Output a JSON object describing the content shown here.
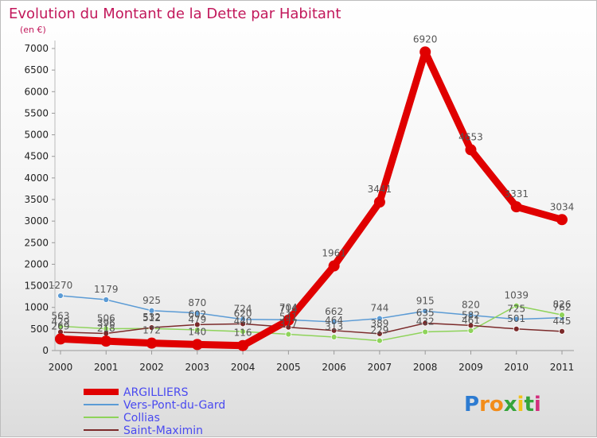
{
  "chart_data": {
    "type": "line",
    "title": "Evolution du Montant de la Dette par Habitant",
    "ylabel": "(en €)",
    "xlabel": "",
    "x": [
      "2000",
      "2001",
      "2002",
      "2003",
      "2004",
      "2005",
      "2006",
      "2007",
      "2008",
      "2009",
      "2010",
      "2011"
    ],
    "ylim": [
      0,
      7000
    ],
    "yticks": [
      "0",
      "500",
      "1000",
      "1500",
      "2000",
      "2500",
      "3000",
      "3500",
      "4000",
      "4500",
      "5000",
      "5500",
      "6000",
      "6500",
      "7000"
    ],
    "series": [
      {
        "name": "ARGILLIERS",
        "color": "#e00000",
        "values": [
          269,
          218,
          172,
          140,
          116,
          704,
          1961,
          3441,
          6920,
          4653,
          3331,
          3034
        ],
        "labels": [
          "269",
          "218",
          "172",
          "140",
          "116",
          "704",
          "1961",
          "3441",
          "6920",
          "4653",
          "3331",
          "3034"
        ]
      },
      {
        "name": "Vers-Pont-du-Gard",
        "color": "#5b9bd5",
        "values": [
          1270,
          1179,
          925,
          870,
          724,
          714,
          662,
          744,
          915,
          820,
          725,
          762
        ],
        "labels": [
          "1270",
          "1179",
          "925",
          "870",
          "724",
          "714",
          "662",
          "744",
          "915",
          "820",
          "725",
          "762"
        ]
      },
      {
        "name": "Collias",
        "color": "#8ed35a",
        "values": [
          563,
          506,
          512,
          479,
          440,
          377,
          313,
          229,
          432,
          461,
          1039,
          826
        ],
        "labels": [
          "563",
          "506",
          "512",
          "479",
          "440",
          "377",
          "313",
          "229",
          "432",
          "461",
          "1039",
          "826"
        ]
      },
      {
        "name": "Saint-Maximin",
        "color": "#7b2a2a",
        "values": [
          429,
          396,
          532,
          602,
          620,
          541,
          464,
          389,
          635,
          582,
          501,
          445
        ],
        "labels": [
          "429",
          "396",
          "532",
          "602",
          "620",
          "541",
          "464",
          "389",
          "635",
          "582",
          "501",
          "445"
        ]
      }
    ]
  },
  "brand": {
    "letters": [
      "P",
      "r",
      "o",
      "x",
      "i",
      "t",
      "i"
    ],
    "colors": [
      "#2d7bd1",
      "#f28c1a",
      "#f28c1a",
      "#35a43a",
      "#f2c21a",
      "#35a43a",
      "#d22e7d"
    ]
  }
}
